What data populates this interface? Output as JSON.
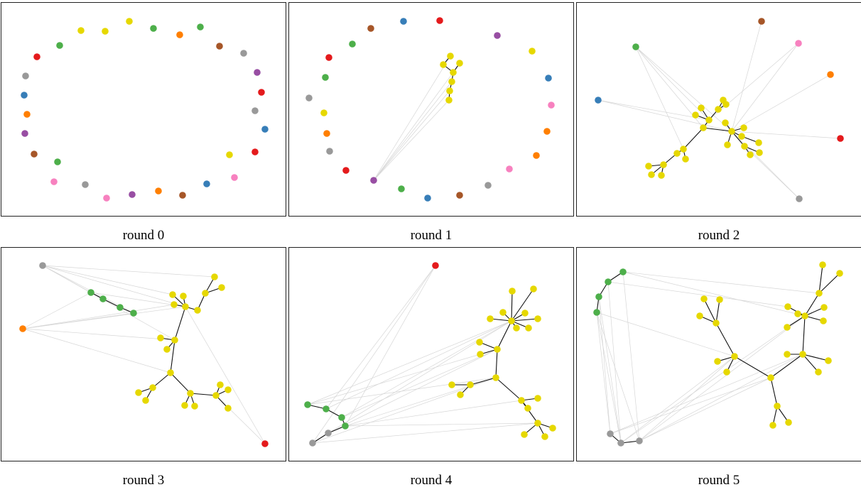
{
  "captions": [
    "round 0",
    "round 1",
    "round 2",
    "round 3",
    "round 4",
    "round 5"
  ],
  "colors": {
    "red": "#e41a1c",
    "blue": "#377eb8",
    "green": "#4daf4a",
    "purple": "#984ea3",
    "orange": "#ff7f00",
    "yellow": "#e6d800",
    "brown": "#a65628",
    "pink": "#f781bf",
    "gray": "#999999",
    "tree_edge": "#111111",
    "cross_edge": "#d6d6d6"
  }
}
